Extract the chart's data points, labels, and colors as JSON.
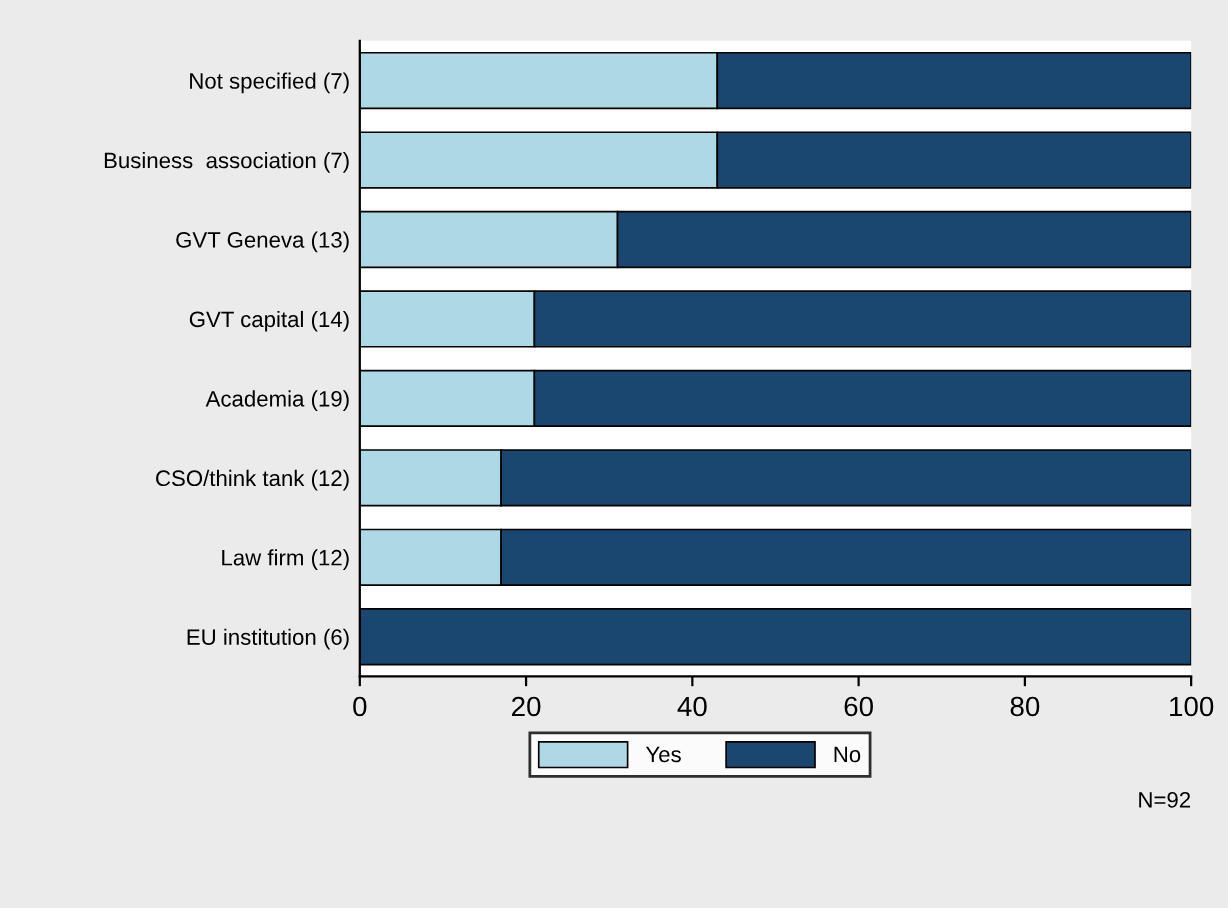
{
  "chart_data": {
    "type": "bar",
    "orientation": "horizontal",
    "stacked": true,
    "categories": [
      "Not specified (7)",
      "Business  association (7)",
      "GVT Geneva (13)",
      "GVT capital (14)",
      "Academia (19)",
      "CSO/think tank (12)",
      "Law firm (12)",
      "EU institution (6)"
    ],
    "series": [
      {
        "name": "Yes",
        "color": "#add8e6",
        "values": [
          43,
          43,
          31,
          21,
          21,
          17,
          17,
          0
        ]
      },
      {
        "name": "No",
        "color": "#1a476f",
        "values": [
          57,
          57,
          69,
          79,
          79,
          83,
          83,
          100
        ]
      }
    ],
    "xlim": [
      0,
      100
    ],
    "xticks": [
      0,
      20,
      40,
      60,
      80,
      100
    ],
    "grid": false,
    "legend": "bottom",
    "annotations": [
      "N=92"
    ]
  }
}
